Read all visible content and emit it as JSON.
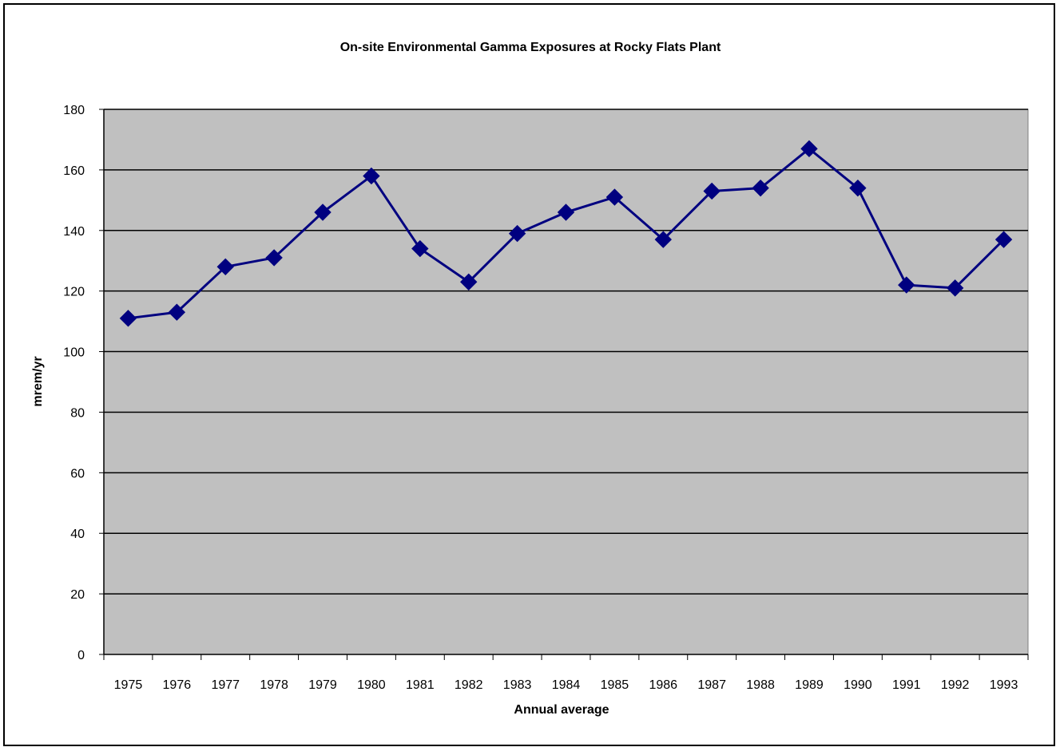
{
  "chart_data": {
    "type": "line",
    "title": "On-site Environmental Gamma Exposures at Rocky Flats Plant",
    "xlabel": "Annual average",
    "ylabel": "mrem/yr",
    "ylim": [
      0,
      180
    ],
    "ytick_step": 20,
    "yticks": [
      "0",
      "20",
      "40",
      "60",
      "80",
      "100",
      "120",
      "140",
      "160",
      "180"
    ],
    "grid": "horizontal major gridlines",
    "legend": "none",
    "marker": "diamond",
    "colors": {
      "plot_area": "#c0c0c0",
      "line": "#000080",
      "gridline": "#000000"
    },
    "categories": [
      "1975",
      "1976",
      "1977",
      "1978",
      "1979",
      "1980",
      "1981",
      "1982",
      "1983",
      "1984",
      "1985",
      "1986",
      "1987",
      "1988",
      "1989",
      "1990",
      "1991",
      "1992",
      "1993"
    ],
    "series": [
      {
        "values": [
          111,
          113,
          128,
          131,
          146,
          158,
          134,
          123,
          139,
          146,
          151,
          137,
          153,
          154,
          167,
          154,
          122,
          121,
          137
        ]
      }
    ]
  }
}
